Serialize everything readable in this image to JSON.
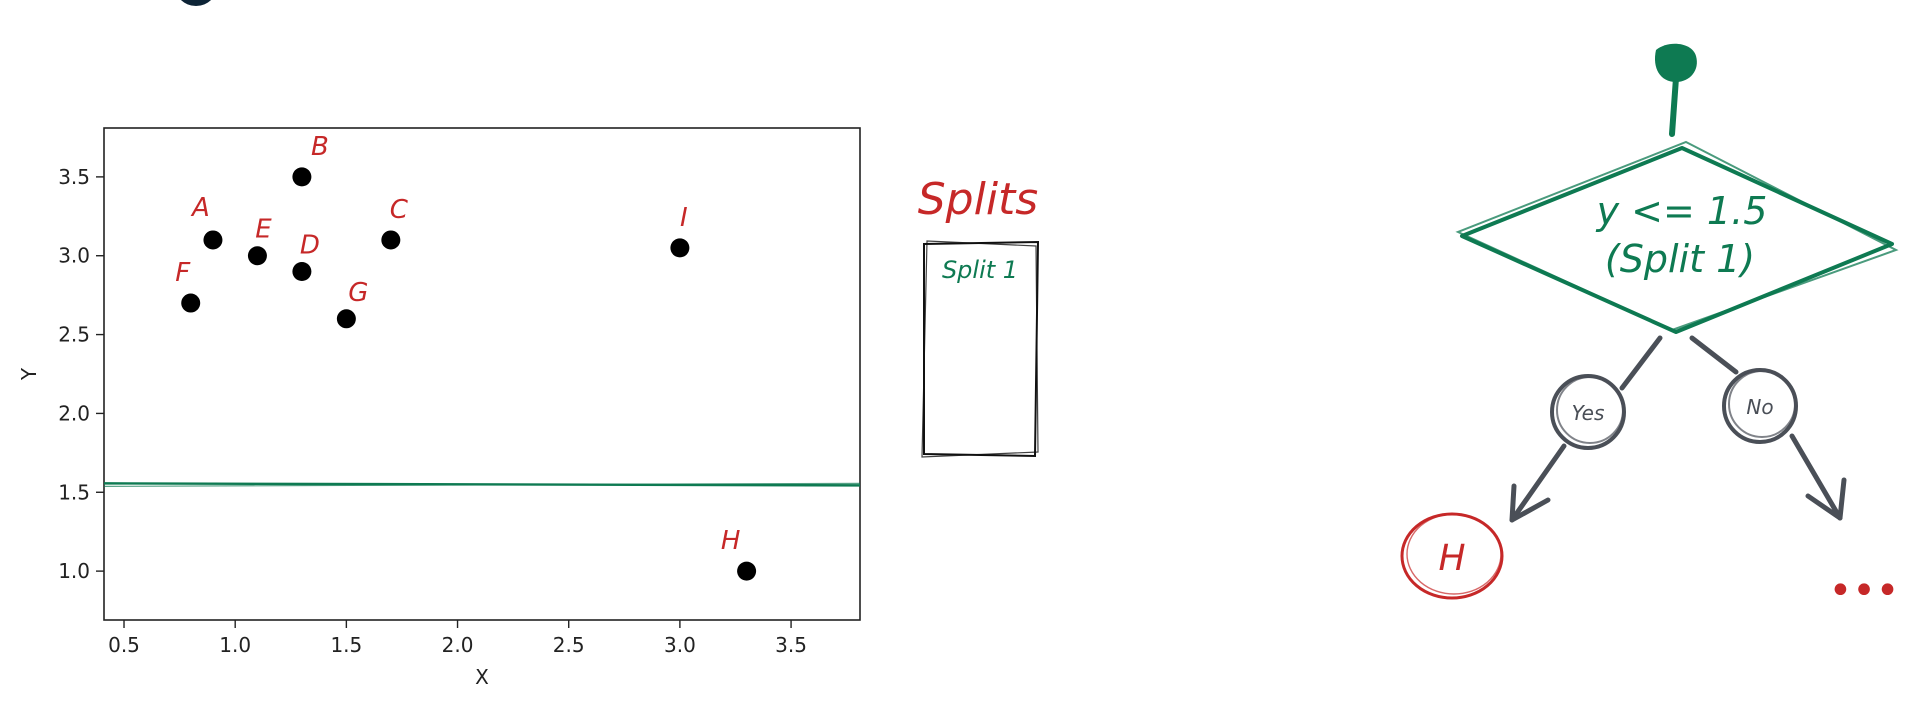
{
  "colors": {
    "red": "#c62828",
    "green": "#0e7a52",
    "gray": "#4a4f57",
    "dark_circle": "#0d2436",
    "point": "#000000",
    "axis": "#222222"
  },
  "chart_data": {
    "type": "scatter",
    "xlabel": "X",
    "ylabel": "Y",
    "xlim": [
      0.41,
      3.81
    ],
    "ylim": [
      0.69,
      3.81
    ],
    "x_ticks": [
      "0.5",
      "1.0",
      "1.5",
      "2.0",
      "2.5",
      "3.0",
      "3.5"
    ],
    "y_ticks": [
      "1.0",
      "1.5",
      "2.0",
      "2.5",
      "3.0",
      "3.5"
    ],
    "points": [
      {
        "label": "A",
        "x": 0.9,
        "y": 3.1
      },
      {
        "label": "B",
        "x": 1.3,
        "y": 3.5
      },
      {
        "label": "C",
        "x": 1.7,
        "y": 3.1
      },
      {
        "label": "D",
        "x": 1.3,
        "y": 2.9
      },
      {
        "label": "E",
        "x": 1.1,
        "y": 3.0
      },
      {
        "label": "F",
        "x": 0.8,
        "y": 2.7
      },
      {
        "label": "G",
        "x": 1.5,
        "y": 2.6
      },
      {
        "label": "H",
        "x": 3.3,
        "y": 1.0
      },
      {
        "label": "I",
        "x": 3.0,
        "y": 3.05
      }
    ],
    "split_line_y": 1.55,
    "grid": false
  },
  "splits": {
    "title": "Splits",
    "items": [
      "Split 1"
    ]
  },
  "tree": {
    "condition": "y <= 1.5",
    "condition_sub": "(Split 1)",
    "yes_label": "Yes",
    "no_label": "No",
    "leaf_label": "H",
    "ellipsis": "•••"
  }
}
